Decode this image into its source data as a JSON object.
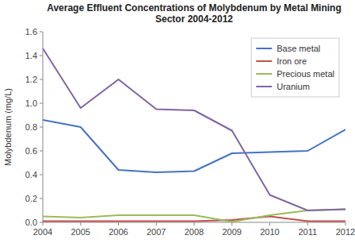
{
  "chart_data": {
    "type": "line",
    "title": "Average Effluent Concentrations of Molybdenum by Metal Mining\nSector 2004-2012",
    "y_label": "Molybdenum (mg/L)",
    "x": [
      2004,
      2005,
      2006,
      2007,
      2008,
      2009,
      2010,
      2011,
      2012
    ],
    "series": [
      {
        "name": "Base metal",
        "color": "#4472C4",
        "values": [
          0.86,
          0.8,
          0.44,
          0.42,
          0.43,
          0.58,
          0.59,
          0.6,
          0.78
        ]
      },
      {
        "name": "Iron ore",
        "color": "#C0504D",
        "values": [
          0.01,
          0.01,
          0.01,
          0.01,
          0.01,
          0.02,
          0.05,
          0.01,
          0.01
        ]
      },
      {
        "name": "Precious metal",
        "color": "#9BBB59",
        "values": [
          0.05,
          0.04,
          0.06,
          0.06,
          0.06,
          0.005,
          0.06,
          0.1,
          0.11
        ]
      },
      {
        "name": "Uranium",
        "color": "#8064A2",
        "values": [
          1.46,
          0.96,
          1.2,
          0.95,
          0.94,
          0.77,
          0.23,
          0.1,
          0.11
        ]
      }
    ],
    "xlim": [
      2004,
      2012
    ],
    "xticks": [
      2004,
      2005,
      2006,
      2007,
      2008,
      2009,
      2010,
      2011,
      2012
    ],
    "ylim": [
      0,
      1.6
    ],
    "yticks": [
      {
        "value": 0,
        "label": "0.0"
      },
      0.2,
      0.4,
      0.6,
      0.8,
      {
        "value": 1,
        "label": "1.0"
      },
      1.2,
      1.4,
      1.6
    ],
    "grid": false,
    "legend": "upper right"
  }
}
